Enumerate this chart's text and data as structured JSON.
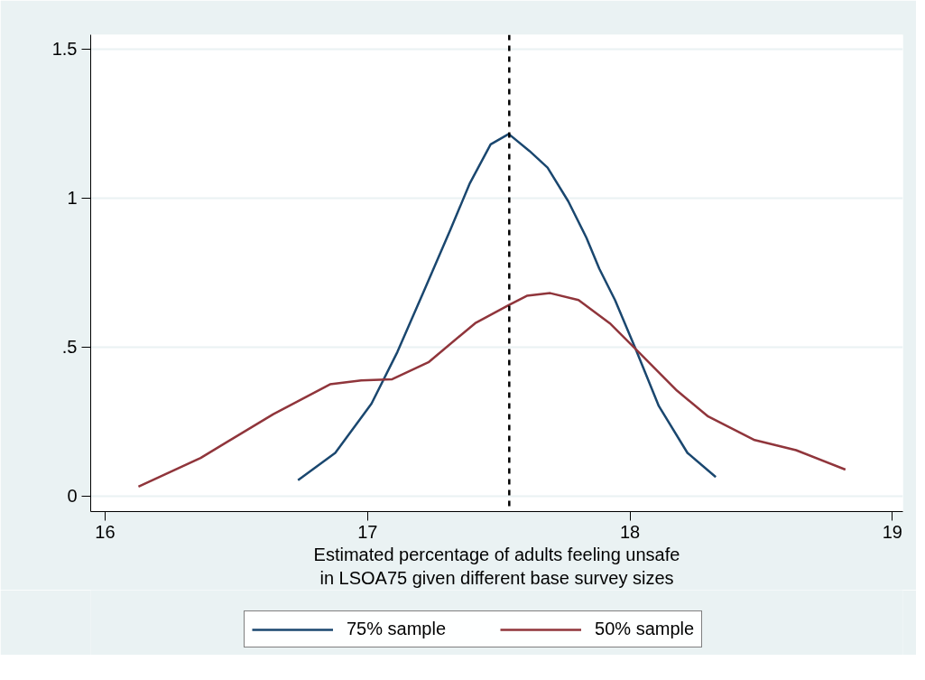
{
  "chart_data": {
    "type": "line",
    "xlabel": "Estimated percentage of adults feeling unsafe\nin LSOA75 given different base survey sizes",
    "xlim": [
      15.945,
      19.04
    ],
    "xticks": [
      16,
      17,
      18,
      19
    ],
    "ylim": [
      -0.052,
      1.548
    ],
    "yticks": [
      0,
      {
        "value": 0.5,
        "label": ".5"
      },
      1,
      1.5
    ],
    "grid": "y",
    "legend": "bottom",
    "line_style": "solid",
    "ref_lines": [
      {
        "axis": "x",
        "value": 17.54,
        "label": null,
        "color": "#000000",
        "line_style": "dashed"
      }
    ],
    "series": [
      {
        "name": "75% sample",
        "color": "#1a476f",
        "x": [
          16.735,
          16.877,
          17.015,
          17.114,
          17.213,
          17.311,
          17.39,
          17.469,
          17.538,
          17.617,
          17.686,
          17.765,
          17.834,
          17.883,
          17.943,
          18.022,
          18.11,
          18.219,
          18.327
        ],
        "values": [
          0.053,
          0.145,
          0.31,
          0.484,
          0.684,
          0.884,
          1.05,
          1.18,
          1.215,
          1.158,
          1.102,
          0.989,
          0.867,
          0.763,
          0.658,
          0.493,
          0.302,
          0.145,
          0.064
        ]
      },
      {
        "name": "50% sample",
        "color": "#90353b",
        "x": [
          16.127,
          16.364,
          16.641,
          16.857,
          16.976,
          17.094,
          17.232,
          17.41,
          17.538,
          17.607,
          17.696,
          17.804,
          17.923,
          18.022,
          18.179,
          18.298,
          18.475,
          18.633,
          18.821
        ],
        "values": [
          0.032,
          0.128,
          0.275,
          0.375,
          0.388,
          0.392,
          0.449,
          0.58,
          0.641,
          0.672,
          0.681,
          0.658,
          0.58,
          0.493,
          0.354,
          0.267,
          0.188,
          0.154,
          0.089
        ]
      }
    ]
  }
}
